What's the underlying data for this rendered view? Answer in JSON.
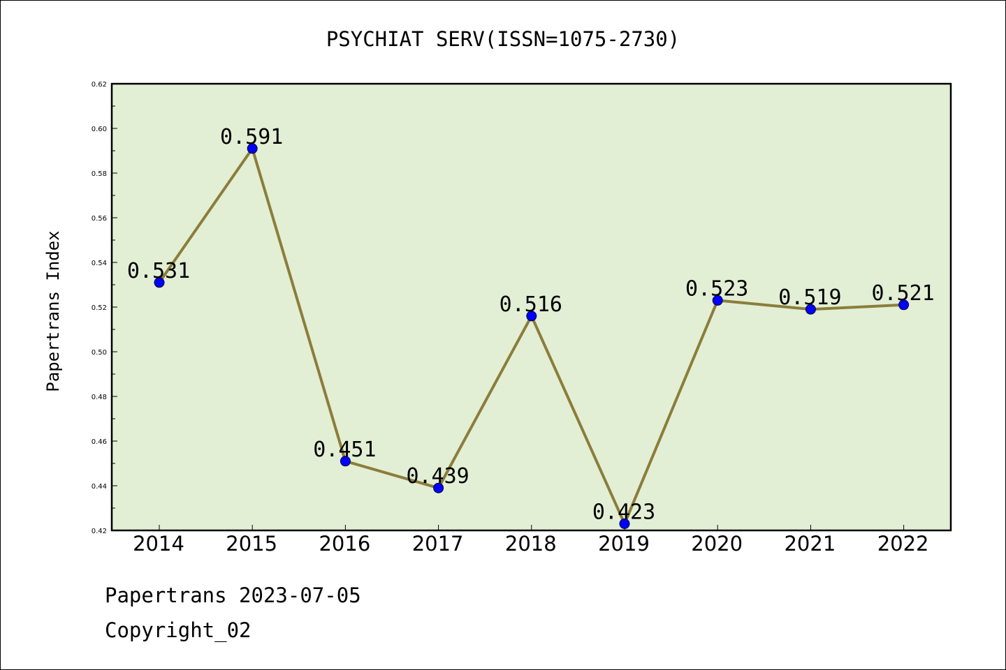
{
  "footer": {
    "line1": "Papertrans 2023-07-05",
    "line2": "Copyright_02"
  },
  "colors": {
    "plot_background": "#e2efd5",
    "line": "#8b7d3a",
    "marker": "#0000ff",
    "axes": "#000000"
  },
  "chart_data": {
    "type": "line",
    "title": "PSYCHIAT SERV(ISSN=1075-2730)",
    "xlabel": "",
    "ylabel": "Papertrans Index",
    "categories": [
      "2014",
      "2015",
      "2016",
      "2017",
      "2018",
      "2019",
      "2020",
      "2021",
      "2022"
    ],
    "series": [
      {
        "values": [
          0.531,
          0.591,
          0.451,
          0.439,
          0.516,
          0.423,
          0.523,
          0.519,
          0.521
        ],
        "data_labels": [
          "0.531",
          "0.591",
          "0.451",
          "0.439",
          "0.516",
          "0.423",
          "0.523",
          "0.519",
          "0.521"
        ]
      }
    ],
    "ylim": [
      0.42,
      0.62
    ],
    "yticks": [
      "0.42",
      "0.44",
      "0.46",
      "0.48",
      "0.50",
      "0.52",
      "0.54",
      "0.56",
      "0.58",
      "0.60",
      "0.62"
    ],
    "grid": false,
    "legend": "none"
  }
}
